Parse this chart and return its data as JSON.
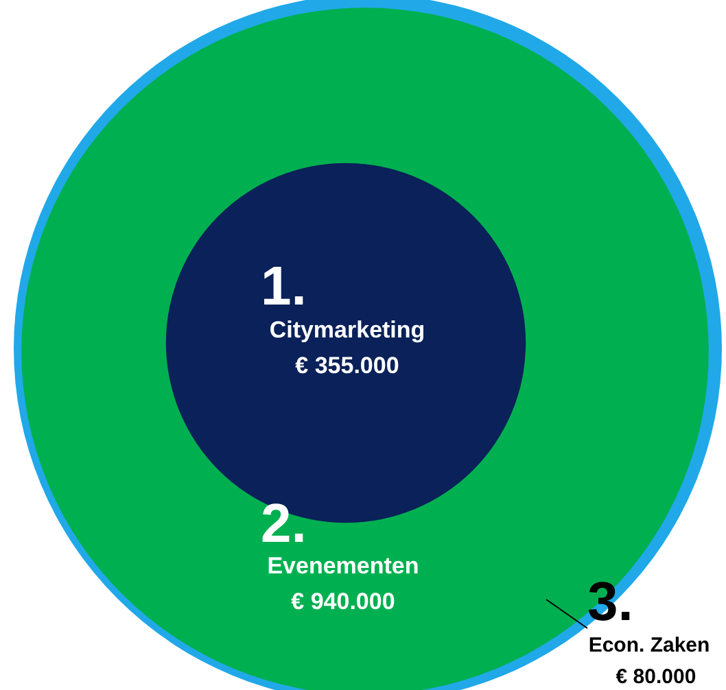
{
  "chart_data": {
    "type": "other",
    "categories": [
      "Citymarketing",
      "Evenementen",
      "Econ. Zaken"
    ],
    "values": [
      355000,
      940000,
      80000
    ],
    "value_labels": [
      "€ 355.000",
      "€ 940.000",
      "€ 80.000"
    ],
    "colors": [
      "#0a2159",
      "#00b050",
      "#21a8e8"
    ],
    "annotations": [
      "1.",
      "2.",
      "3."
    ]
  }
}
